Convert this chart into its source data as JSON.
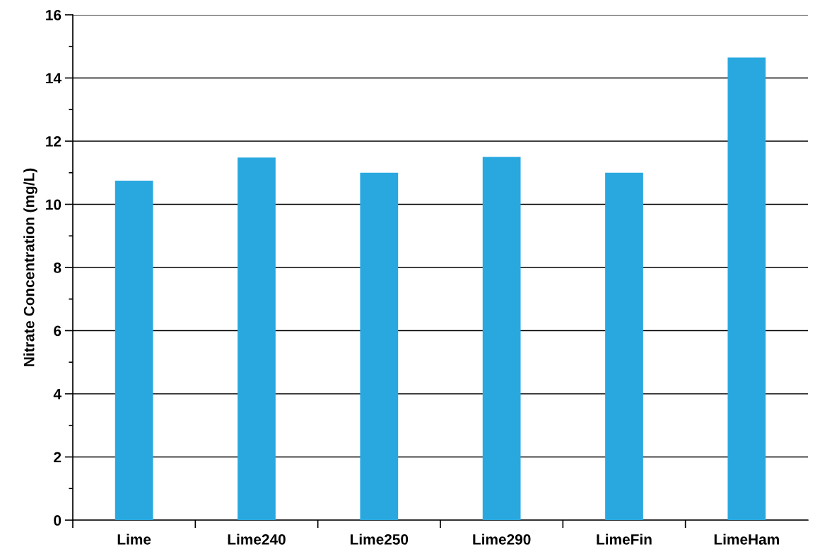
{
  "chart_data": {
    "type": "bar",
    "ylabel": "Nitrate Concentration (mg/L)",
    "categories": [
      "Lime",
      "Lime240",
      "Lime250",
      "Lime290",
      "LimeFin",
      "LimeHam"
    ],
    "values": [
      10.75,
      11.48,
      11.0,
      11.5,
      11.0,
      14.65
    ],
    "color": "#29a8e0",
    "ylim": [
      0,
      16
    ],
    "yticks": [
      0,
      2,
      4,
      6,
      8,
      10,
      12,
      14,
      16
    ],
    "grid": "y",
    "legend": false
  }
}
